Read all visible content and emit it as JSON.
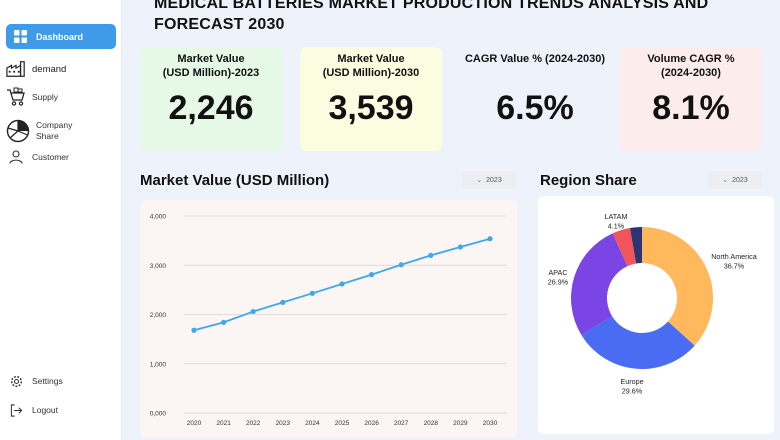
{
  "header": {
    "title": "MEDICAL BATTERIES MARKET PRODUCTION TRENDS ANALYSIS AND FORECAST 2030"
  },
  "sidebar": {
    "items": [
      {
        "label": "Dashboard",
        "icon": "grid-icon",
        "active": true
      },
      {
        "label": "demand",
        "icon": "factory-icon"
      },
      {
        "label": "Supply",
        "icon": "cart-icon"
      },
      {
        "label": "Company Share",
        "icon": "pie-icon"
      },
      {
        "label": "Customer",
        "icon": "user-icon"
      }
    ],
    "bottom": [
      {
        "label": "Settings",
        "icon": "gear-icon"
      },
      {
        "label": "Logout",
        "icon": "logout-icon"
      }
    ]
  },
  "kpis": [
    {
      "label_line1": "Market Value",
      "label_line2": "(USD Million)-2023",
      "value": "2,246",
      "color": "#e6f9e6"
    },
    {
      "label_line1": "Market Value",
      "label_line2": "(USD Million)-2030",
      "value": "3,539",
      "color": "#fbfde0"
    },
    {
      "label_line1": "CAGR  Value % (2024-2030)",
      "label_line2": "",
      "value": "6.5%",
      "color": "#eef3fb"
    },
    {
      "label_line1": "Volume CAGR  %",
      "label_line2": "(2024-2030)",
      "value": "8.1%",
      "color": "#fdecec"
    }
  ],
  "market_chart": {
    "title": "Market Value (USD Million)",
    "dropdown": "2023"
  },
  "region_chart": {
    "title": "Region Share",
    "dropdown": "2023"
  },
  "chart_data": [
    {
      "type": "line",
      "title": "Market Value (USD Million)",
      "x": [
        "2020",
        "2021",
        "2022",
        "2023",
        "2024",
        "2025",
        "2026",
        "2027",
        "2028",
        "2029",
        "2030"
      ],
      "series": [
        {
          "values": [
            1680,
            1840,
            2060,
            2246,
            2430,
            2620,
            2810,
            3010,
            3200,
            3370,
            3539
          ]
        }
      ],
      "yticks": [
        "0,000",
        "1,000",
        "2,000",
        "3,000",
        "4,000"
      ],
      "ylim": [
        0,
        4000
      ],
      "grid": true,
      "color": "#3fa9e8"
    },
    {
      "type": "pie",
      "title": "Region Share",
      "slices": [
        {
          "label": "North America",
          "value": 36.7,
          "display": "36.7%",
          "color": "#ffb85c"
        },
        {
          "label": "Europe",
          "value": 29.6,
          "display": "29.6%",
          "color": "#4a6cf2"
        },
        {
          "label": "APAC",
          "value": 26.9,
          "display": "26.9%",
          "color": "#7b45e6"
        },
        {
          "label": "LATAM",
          "value": 4.1,
          "display": "4.1%",
          "color": "#f2545b"
        },
        {
          "label": "",
          "value": 2.7,
          "display": "",
          "color": "#2c3572"
        }
      ]
    }
  ]
}
